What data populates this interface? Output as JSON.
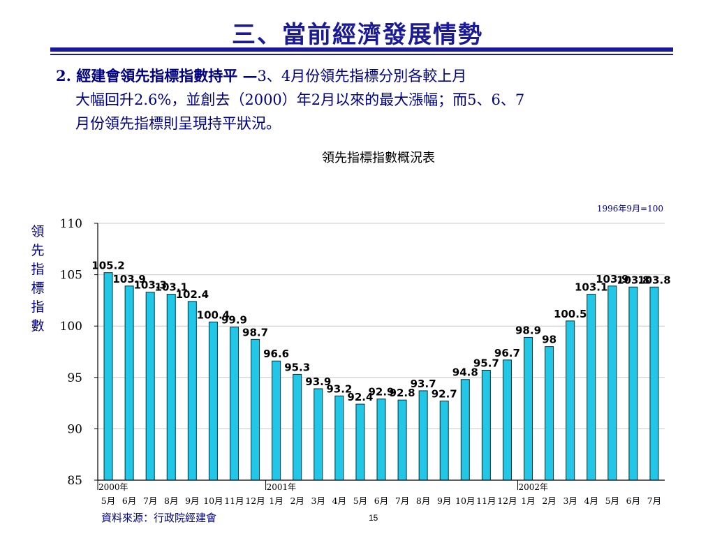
{
  "slide": {
    "title": "三、當前經濟發展情勢",
    "heading": "2. 經建會領先指標指數持平 —",
    "body_line1_rest": "3、4月份領先指標分別各較上月",
    "body_line2": "大幅回升2.6%，並創去（2000）年2月以來的最大漲幅；而5、6、7",
    "body_line3": "月份領先指標則呈現持平狀況。",
    "source": "資料來源：行政院經建會",
    "page_number": "15"
  },
  "colors": {
    "title": "#1a1a99",
    "bar_fill": "#22c6e6",
    "bar_stroke": "#003333",
    "text_blue": "#000080"
  },
  "chart_data": {
    "type": "bar",
    "title": "領先指標指數概況表",
    "ylabel": "領先指標指數",
    "base_note": "1996年9月=100",
    "ylim": [
      85,
      110
    ],
    "yticks": [
      85,
      90,
      95,
      100,
      105,
      110
    ],
    "grid": true,
    "categories": [
      "5月",
      "6月",
      "7月",
      "8月",
      "9月",
      "10月",
      "11月",
      "12月",
      "1月",
      "2月",
      "3月",
      "4月",
      "5月",
      "6月",
      "7月",
      "8月",
      "9月",
      "10月",
      "11月",
      "12月",
      "1月",
      "2月",
      "3月",
      "4月",
      "5月",
      "6月",
      "7月"
    ],
    "year_labels": [
      {
        "label": "2000年",
        "index": 0
      },
      {
        "label": "2001年",
        "index": 8
      },
      {
        "label": "2002年",
        "index": 20
      }
    ],
    "values": [
      105.2,
      103.9,
      103.3,
      103.1,
      102.4,
      100.4,
      99.9,
      98.7,
      96.6,
      95.3,
      93.9,
      93.2,
      92.4,
      92.9,
      92.8,
      93.7,
      92.7,
      94.8,
      95.7,
      96.7,
      98.9,
      98,
      100.5,
      103.1,
      103.9,
      103.8,
      103.8
    ],
    "data_labels": [
      "105.2",
      "103.9",
      "103.3",
      "103.1",
      "102.4",
      "100.4",
      "99.9",
      "98.7",
      "96.6",
      "95.3",
      "93.9",
      "93.2",
      "92.4",
      "92.9",
      "92.8",
      "93.7",
      "92.7",
      "94.8",
      "95.7",
      "96.7",
      "98.9",
      "98",
      "100.5",
      "103.1",
      "103.9",
      "103.8",
      "103.8"
    ]
  }
}
